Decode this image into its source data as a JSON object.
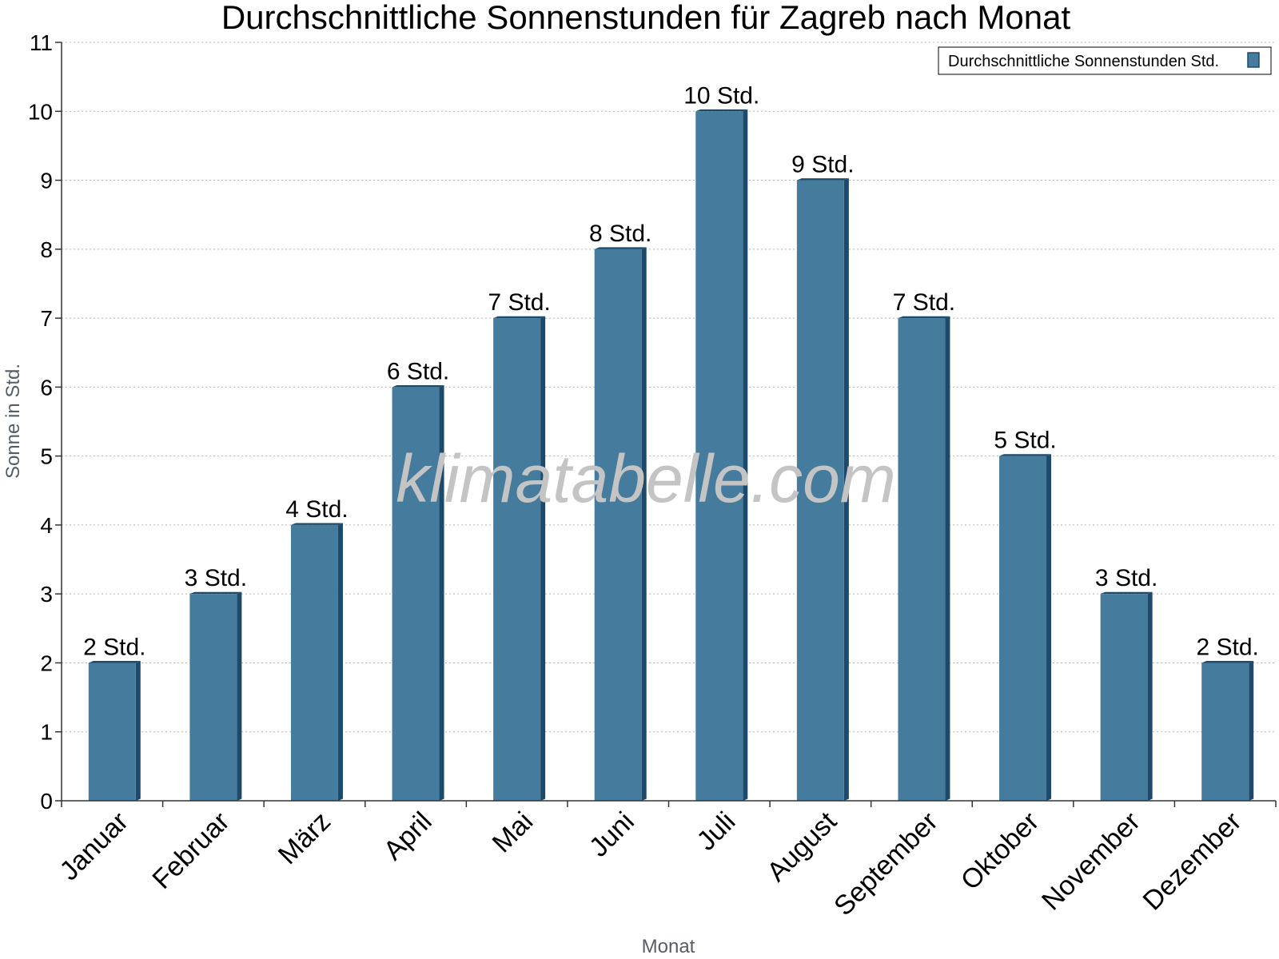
{
  "chart_data": {
    "type": "bar",
    "title": "Durchschnittliche Sonnenstunden für Zagreb nach Monat",
    "xlabel": "Monat",
    "ylabel": "Sonne in Std.",
    "ylim": [
      0,
      11
    ],
    "yticks": [
      0,
      1,
      2,
      3,
      4,
      5,
      6,
      7,
      8,
      9,
      10,
      11
    ],
    "grid": true,
    "legend_position": "top-right",
    "categories": [
      "Januar",
      "Februar",
      "März",
      "April",
      "Mai",
      "Juni",
      "Juli",
      "August",
      "September",
      "Oktober",
      "November",
      "Dezember"
    ],
    "series": [
      {
        "name": "Durchschnittliche Sonnenstunden Std.",
        "values": [
          2,
          3,
          4,
          6,
          7,
          8,
          10,
          9,
          7,
          5,
          3,
          2
        ],
        "labels": [
          "2 Std.",
          "3 Std.",
          "4 Std.",
          "6 Std.",
          "7 Std.",
          "8 Std.",
          "10 Std.",
          "9 Std.",
          "7 Std.",
          "5 Std.",
          "3 Std.",
          "2 Std."
        ],
        "color": "#457b9d",
        "edge_color": "#1d4a6b"
      }
    ],
    "watermark": "klimatabelle.com"
  }
}
